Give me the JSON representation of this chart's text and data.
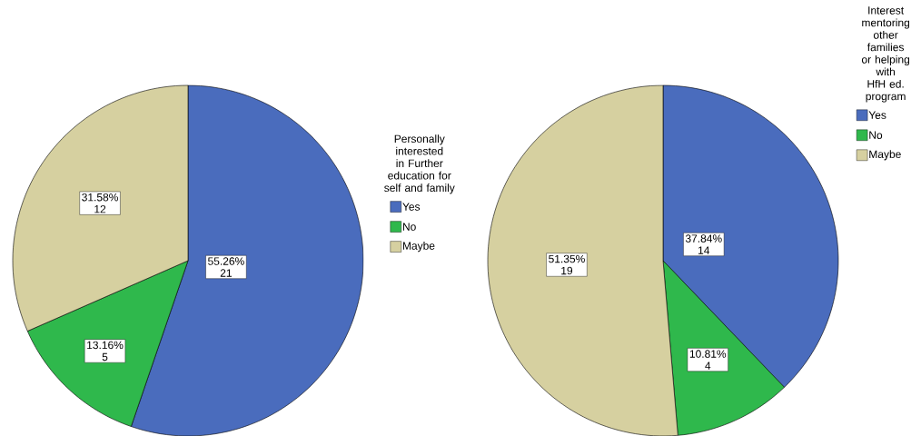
{
  "chart_data": [
    {
      "type": "pie",
      "legend_title": "Personally interested in Further education for self and family",
      "categories": [
        "Yes",
        "No",
        "Maybe"
      ],
      "values": [
        55.26,
        13.16,
        31.58
      ],
      "value_labels": [
        "55.26%",
        "13.16%",
        "31.58%"
      ],
      "annotations": [
        "21",
        "5",
        "12"
      ],
      "colors": [
        "#4a6cbd",
        "#2fb84c",
        "#d6d0a0"
      ],
      "legend": "right"
    },
    {
      "type": "pie",
      "legend_title": "Interest mentoring other families or helping with HfH ed. program",
      "categories": [
        "Yes",
        "No",
        "Maybe"
      ],
      "values": [
        37.84,
        10.81,
        51.35
      ],
      "value_labels": [
        "37.84%",
        "10.81%",
        "51.35%"
      ],
      "annotations": [
        "14",
        "4",
        "19"
      ],
      "colors": [
        "#4a6cbd",
        "#2fb84c",
        "#d6d0a0"
      ],
      "legend": "right"
    }
  ]
}
